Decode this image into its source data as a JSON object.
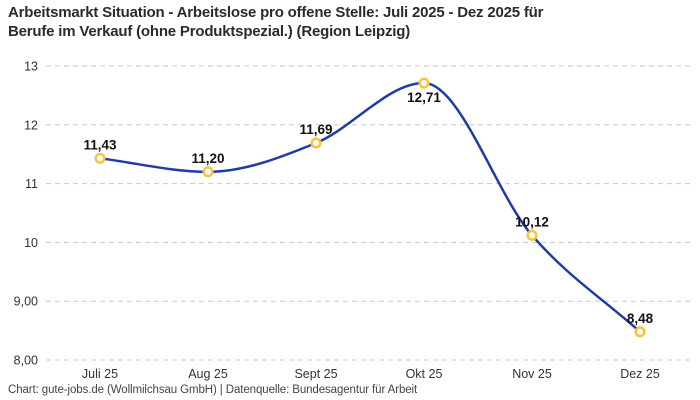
{
  "header": {
    "title_line1": "Arbeitsmarkt Situation - Arbeitslose pro offene Stelle: Juli 2025 - Dez 2025 für",
    "title_line2": "Berufe im Verkauf (ohne Produktspezial.) (Region Leipzig)"
  },
  "chart_data": {
    "type": "line",
    "title": "Arbeitsmarkt Situation - Arbeitslose pro offene Stelle: Juli 2025 - Dez 2025 für Berufe im Verkauf (ohne Produktspezial.) (Region Leipzig)",
    "categories": [
      "Juli 25",
      "Aug 25",
      "Sept 25",
      "Okt 25",
      "Nov 25",
      "Dez 25"
    ],
    "values": [
      11.43,
      11.2,
      11.69,
      12.71,
      10.12,
      8.48
    ],
    "value_labels": [
      "11,43",
      "11,20",
      "11,69",
      "12,71",
      "10,12",
      "8,48"
    ],
    "value_label_positions": [
      "above",
      "above",
      "above",
      "below",
      "above",
      "above"
    ],
    "y_ticks": [
      {
        "value": 13,
        "label": "13"
      },
      {
        "value": 12,
        "label": "12"
      },
      {
        "value": 11,
        "label": "11"
      },
      {
        "value": 10,
        "label": "10"
      },
      {
        "value": 9,
        "label": "9,00"
      },
      {
        "value": 8,
        "label": "8,00"
      }
    ],
    "ylim": [
      8,
      13
    ],
    "xlabel": "",
    "ylabel": "",
    "grid": "horizontal-dashed",
    "legend": "none",
    "smoothing": true,
    "line_color": "#1e3ba6",
    "marker_color": "#f7c53c",
    "marker_fill": "#ffffff",
    "grid_color": "#c8c8c8",
    "axis_text_color": "#333333",
    "value_label_color": "#111111"
  },
  "footer": {
    "credit": "Chart: gute-jobs.de (Wollmilchsau GmbH) | Datenquelle: Bundesagentur für Arbeit"
  }
}
